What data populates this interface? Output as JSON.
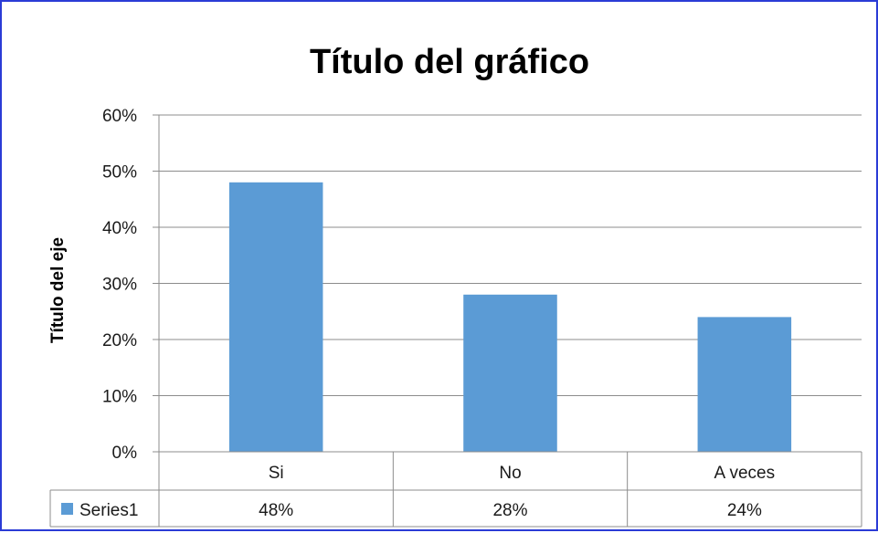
{
  "chart_data": {
    "type": "bar",
    "title": "Título del gráfico",
    "ylabel": "Título del eje",
    "xlabel": "",
    "categories": [
      "Si",
      "No",
      "A veces"
    ],
    "series": [
      {
        "name": "Series1",
        "values": [
          0.48,
          0.28,
          0.24
        ],
        "labels": [
          "48%",
          "28%",
          "24%"
        ],
        "color": "#5b9bd5"
      }
    ],
    "ylim": [
      0,
      0.6
    ],
    "yticks": [
      0,
      0.1,
      0.2,
      0.3,
      0.4,
      0.5,
      0.6
    ],
    "ytick_labels": [
      "0%",
      "10%",
      "20%",
      "30%",
      "40%",
      "50%",
      "60%"
    ],
    "grid": true,
    "legend": "data-table"
  },
  "colors": {
    "frame_border": "#2b3bd6",
    "gridline": "#8c8c8c",
    "bar": "#5b9bd5"
  }
}
